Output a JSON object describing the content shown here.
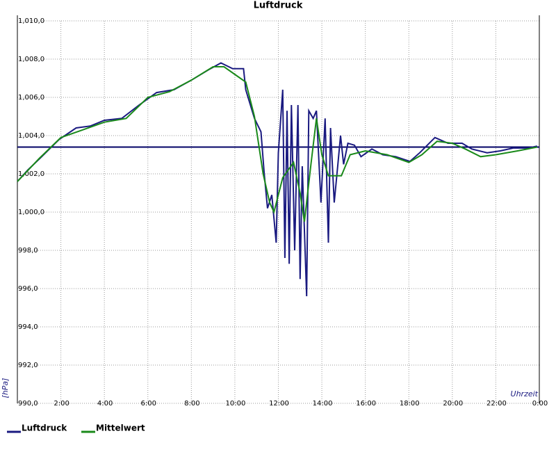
{
  "chart_data": {
    "type": "line",
    "title": "Luftdruck",
    "y_label": "[hPa]",
    "x_label": "Uhrzeit",
    "xlim": [
      0,
      24
    ],
    "xticks": [
      {
        "value": 2,
        "label": "2:00"
      },
      {
        "value": 4,
        "label": "4:00"
      },
      {
        "value": 6,
        "label": "6:00"
      },
      {
        "value": 8,
        "label": "8:00"
      },
      {
        "value": 10,
        "label": "10:00"
      },
      {
        "value": 12,
        "label": "12:00"
      },
      {
        "value": 14,
        "label": "14:00"
      },
      {
        "value": 16,
        "label": "16:00"
      },
      {
        "value": 18,
        "label": "18:00"
      },
      {
        "value": 20,
        "label": "20:00"
      },
      {
        "value": 22,
        "label": "22:00"
      },
      {
        "value": 24,
        "label": "0:00"
      }
    ],
    "ylim": [
      990,
      1010
    ],
    "yticks": [
      {
        "value": 990,
        "label": "990,0"
      },
      {
        "value": 992,
        "label": "992,0"
      },
      {
        "value": 994,
        "label": "994,0"
      },
      {
        "value": 996,
        "label": "996,0"
      },
      {
        "value": 998,
        "label": "998,0"
      },
      {
        "value": 1000,
        "label": "1,000,0"
      },
      {
        "value": 1002,
        "label": "1,002,0"
      },
      {
        "value": 1004,
        "label": "1,004,0"
      },
      {
        "value": 1006,
        "label": "1,006,0"
      },
      {
        "value": 1008,
        "label": "1,008,0"
      },
      {
        "value": 1010,
        "label": "1,010,0"
      }
    ],
    "grid": true,
    "reference_line": 1003.4,
    "reference_color": "#000066",
    "legend": "bottom-left",
    "series": [
      {
        "name": "Luftdruck",
        "color": "#1a1a80",
        "x": [
          0,
          0.48,
          1.12,
          1.92,
          2.7,
          3.35,
          4.0,
          4.8,
          5.6,
          6.4,
          7.2,
          8.0,
          8.8,
          9.36,
          9.9,
          10.4,
          10.5,
          10.9,
          11.2,
          11.35,
          11.5,
          11.7,
          11.9,
          12.0,
          12.2,
          12.3,
          12.4,
          12.5,
          12.6,
          12.75,
          12.9,
          13.0,
          13.1,
          13.3,
          13.4,
          13.6,
          13.75,
          13.96,
          14.15,
          14.3,
          14.4,
          14.57,
          14.73,
          14.86,
          15.0,
          15.2,
          15.5,
          15.8,
          16.3,
          16.8,
          17.4,
          18.05,
          18.5,
          19.2,
          19.8,
          20.45,
          20.9,
          21.6,
          22.2,
          22.8,
          23.5,
          23.9
        ],
        "values": [
          1001.6,
          1002.2,
          1002.9,
          1003.8,
          1004.4,
          1004.5,
          1004.8,
          1004.9,
          1005.6,
          1006.25,
          1006.4,
          1006.9,
          1007.45,
          1007.8,
          1007.5,
          1007.5,
          1006.4,
          1004.9,
          1004.2,
          1002.0,
          1000.2,
          1000.9,
          998.4,
          1003.1,
          1006.4,
          997.6,
          1005.3,
          997.3,
          1005.6,
          998.0,
          1005.6,
          996.5,
          1002.4,
          995.6,
          1005.3,
          1004.9,
          1005.3,
          1000.5,
          1004.9,
          998.4,
          1004.4,
          1000.5,
          1002.4,
          1004.0,
          1002.5,
          1003.6,
          1003.5,
          1002.9,
          1003.3,
          1003.0,
          1002.9,
          1002.65,
          1003.1,
          1003.9,
          1003.6,
          1003.6,
          1003.3,
          1003.1,
          1003.2,
          1003.35,
          1003.35,
          1003.45
        ]
      },
      {
        "name": "Mittelwert",
        "color": "#1a8a1a",
        "x": [
          0,
          1.0,
          2.0,
          3.0,
          4.0,
          5.0,
          6.0,
          7.0,
          8.0,
          9.0,
          9.5,
          10.0,
          10.5,
          10.9,
          11.3,
          11.6,
          11.8,
          12.2,
          12.7,
          13.0,
          13.2,
          13.5,
          13.75,
          14.0,
          14.3,
          14.9,
          15.3,
          16.0,
          17.0,
          18.0,
          18.6,
          19.3,
          20.0,
          20.6,
          21.3,
          22.0,
          23.0,
          23.9
        ],
        "values": [
          1001.6,
          1002.8,
          1003.9,
          1004.3,
          1004.7,
          1004.9,
          1006.0,
          1006.3,
          1006.9,
          1007.6,
          1007.6,
          1007.2,
          1006.8,
          1005.0,
          1002.0,
          1000.5,
          1000.0,
          1001.8,
          1002.6,
          1001.0,
          999.5,
          1002.5,
          1004.9,
          1003.0,
          1001.9,
          1001.9,
          1003.0,
          1003.2,
          1003.0,
          1002.6,
          1003.0,
          1003.7,
          1003.6,
          1003.3,
          1002.9,
          1003.0,
          1003.2,
          1003.4
        ]
      }
    ]
  }
}
